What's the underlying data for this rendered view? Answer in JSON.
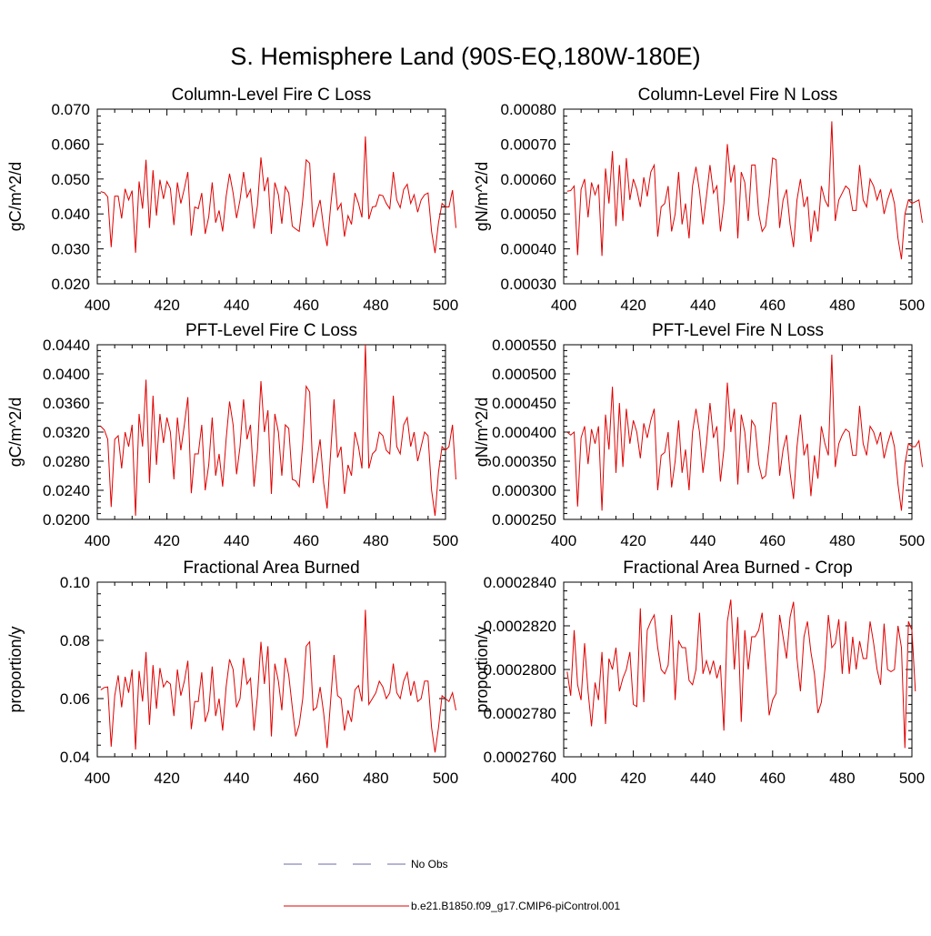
{
  "page_title": "S. Hemisphere Land (90S-EQ,180W-180E)",
  "legend": [
    {
      "label": "No Obs",
      "color": "#6a6aa8",
      "style": "dashed"
    },
    {
      "label": "b.e21.B1850.f09_g17.CMIP6-piControl.001",
      "color": "#e00000",
      "style": "solid"
    }
  ],
  "chart_data": [
    {
      "type": "line",
      "title": "Column-Level Fire C Loss",
      "xlabel": "",
      "ylabel": "gC/m^2/d",
      "xlim": [
        400,
        500
      ],
      "ylim": [
        0.02,
        0.07
      ],
      "xticks": [
        400,
        420,
        440,
        460,
        480,
        500
      ],
      "xtick_labels": [
        "400",
        "420",
        "440",
        "460",
        "480",
        "500"
      ],
      "yticks": [
        0.02,
        0.03,
        0.04,
        0.05,
        0.06,
        0.07
      ],
      "ytick_labels": [
        "0.020",
        "0.030",
        "0.040",
        "0.050",
        "0.060",
        "0.070"
      ],
      "series": [
        {
          "name": "b.e21.B1850.f09_g17.CMIP6-piControl.001",
          "color": "#e00000",
          "x_start": 401,
          "values": [
            0.0464,
            0.0461,
            0.0449,
            0.0305,
            0.0451,
            0.0451,
            0.0387,
            0.0472,
            0.044,
            0.0467,
            0.0289,
            0.0493,
            0.0415,
            0.0555,
            0.036,
            0.0525,
            0.0395,
            0.0498,
            0.0443,
            0.0493,
            0.0473,
            0.0368,
            0.049,
            0.043,
            0.0473,
            0.052,
            0.0338,
            0.042,
            0.0415,
            0.046,
            0.0343,
            0.0392,
            0.049,
            0.0375,
            0.041,
            0.035,
            0.045,
            0.0515,
            0.046,
            0.0388,
            0.044,
            0.052,
            0.0448,
            0.047,
            0.0358,
            0.0425,
            0.0562,
            0.0465,
            0.0505,
            0.0343,
            0.049,
            0.0455,
            0.0372,
            0.0478,
            0.046,
            0.0365,
            0.0357,
            0.035,
            0.044,
            0.0555,
            0.0545,
            0.0362,
            0.0405,
            0.044,
            0.036,
            0.0308,
            0.042,
            0.0518,
            0.0412,
            0.043,
            0.0335,
            0.0395,
            0.037,
            0.046,
            0.043,
            0.039,
            0.0622,
            0.0385,
            0.042,
            0.0422,
            0.0455,
            0.0452,
            0.043,
            0.0415,
            0.052,
            0.044,
            0.0418,
            0.047,
            0.0485,
            0.043,
            0.0455,
            0.0405,
            0.044,
            0.0455,
            0.046,
            0.035,
            0.0288,
            0.0375,
            0.043,
            0.042,
            0.042,
            0.0468,
            0.036
          ]
        }
      ]
    },
    {
      "type": "line",
      "title": "Column-Level Fire N Loss",
      "xlabel": "",
      "ylabel": "gN/m^2/d",
      "xlim": [
        400,
        500
      ],
      "ylim": [
        0.0003,
        0.0008
      ],
      "xticks": [
        400,
        420,
        440,
        460,
        480,
        500
      ],
      "xtick_labels": [
        "400",
        "420",
        "440",
        "460",
        "480",
        "500"
      ],
      "yticks": [
        0.0003,
        0.0004,
        0.0005,
        0.0006,
        0.0007,
        0.0008
      ],
      "ytick_labels": [
        "0.00030",
        "0.00040",
        "0.00050",
        "0.00060",
        "0.00070",
        "0.00080"
      ],
      "series": [
        {
          "name": "b.e21.B1850.f09_g17.CMIP6-piControl.001",
          "color": "#e00000",
          "x_start": 401,
          "values": [
            0.000565,
            0.000567,
            0.00058,
            0.000382,
            0.00057,
            0.0006,
            0.00049,
            0.00059,
            0.000555,
            0.000585,
            0.00038,
            0.00063,
            0.00053,
            0.00068,
            0.000465,
            0.00064,
            0.00048,
            0.00066,
            0.00054,
            0.0006,
            0.00057,
            0.00052,
            0.000605,
            0.00055,
            0.00062,
            0.00064,
            0.000435,
            0.00052,
            0.00053,
            0.00058,
            0.00045,
            0.0005,
            0.00062,
            0.00047,
            0.00053,
            0.00043,
            0.00058,
            0.000635,
            0.000565,
            0.00047,
            0.00055,
            0.00064,
            0.00056,
            0.00058,
            0.00045,
            0.00053,
            0.0007,
            0.00059,
            0.00064,
            0.00043,
            0.00062,
            0.00059,
            0.00048,
            0.00064,
            0.00064,
            0.0005,
            0.00045,
            0.000465,
            0.00055,
            0.00066,
            0.000655,
            0.00046,
            0.00054,
            0.00057,
            0.00047,
            0.000405,
            0.00054,
            0.0006,
            0.00052,
            0.00055,
            0.00042,
            0.00051,
            0.00045,
            0.00058,
            0.00054,
            0.00052,
            0.000765,
            0.00048,
            0.00054,
            0.00056,
            0.00058,
            0.00057,
            0.00051,
            0.00051,
            0.00064,
            0.00054,
            0.00052,
            0.0006,
            0.00058,
            0.00054,
            0.00057,
            0.0005,
            0.00054,
            0.00057,
            0.00053,
            0.00043,
            0.00037,
            0.0005,
            0.00054,
            0.00053,
            0.000535,
            0.00054,
            0.000475
          ]
        }
      ]
    },
    {
      "type": "line",
      "title": "PFT-Level Fire C Loss",
      "xlabel": "",
      "ylabel": "gC/m^2/d",
      "xlim": [
        400,
        500
      ],
      "ylim": [
        0.02,
        0.044
      ],
      "xticks": [
        400,
        420,
        440,
        460,
        480,
        500
      ],
      "xtick_labels": [
        "400",
        "420",
        "440",
        "460",
        "480",
        "500"
      ],
      "yticks": [
        0.02,
        0.024,
        0.028,
        0.032,
        0.036,
        0.04,
        0.044
      ],
      "ytick_labels": [
        "0.0200",
        "0.0240",
        "0.0280",
        "0.0320",
        "0.0360",
        "0.0400",
        "0.0440"
      ],
      "series": [
        {
          "name": "b.e21.B1850.f09_g17.CMIP6-piControl.001",
          "color": "#e00000",
          "x_start": 401,
          "values": [
            0.0328,
            0.0323,
            0.031,
            0.0217,
            0.031,
            0.0315,
            0.027,
            0.032,
            0.03,
            0.033,
            0.0205,
            0.0345,
            0.03,
            0.0392,
            0.025,
            0.037,
            0.0275,
            0.0345,
            0.0305,
            0.034,
            0.032,
            0.0255,
            0.034,
            0.0295,
            0.033,
            0.0368,
            0.0236,
            0.029,
            0.029,
            0.033,
            0.024,
            0.0275,
            0.034,
            0.026,
            0.029,
            0.0245,
            0.031,
            0.0362,
            0.033,
            0.0262,
            0.03,
            0.0365,
            0.031,
            0.033,
            0.0245,
            0.0295,
            0.039,
            0.032,
            0.035,
            0.0235,
            0.0345,
            0.032,
            0.026,
            0.033,
            0.0325,
            0.0255,
            0.0253,
            0.0245,
            0.0305,
            0.0383,
            0.0375,
            0.025,
            0.028,
            0.031,
            0.025,
            0.0215,
            0.029,
            0.0365,
            0.0285,
            0.03,
            0.0235,
            0.0275,
            0.026,
            0.032,
            0.03,
            0.027,
            0.044,
            0.027,
            0.029,
            0.0295,
            0.032,
            0.0315,
            0.0295,
            0.029,
            0.037,
            0.03,
            0.029,
            0.033,
            0.034,
            0.03,
            0.032,
            0.028,
            0.03,
            0.032,
            0.0315,
            0.024,
            0.0205,
            0.0265,
            0.03,
            0.0295,
            0.03,
            0.033,
            0.0255
          ]
        }
      ]
    },
    {
      "type": "line",
      "title": "PFT-Level Fire N Loss",
      "xlabel": "",
      "ylabel": "gN/m^2/d",
      "xlim": [
        400,
        500
      ],
      "ylim": [
        0.00025,
        0.00055
      ],
      "xticks": [
        400,
        420,
        440,
        460,
        480,
        500
      ],
      "xtick_labels": [
        "400",
        "420",
        "440",
        "460",
        "480",
        "500"
      ],
      "yticks": [
        0.00025,
        0.0003,
        0.00035,
        0.0004,
        0.00045,
        0.0005,
        0.00055
      ],
      "ytick_labels": [
        "0.000250",
        "0.000300",
        "0.000350",
        "0.000400",
        "0.000450",
        "0.000500",
        "0.000550"
      ],
      "series": [
        {
          "name": "b.e21.B1850.f09_g17.CMIP6-piControl.001",
          "color": "#e00000",
          "x_start": 401,
          "values": [
            0.0004,
            0.000395,
            0.0004,
            0.000272,
            0.00039,
            0.00041,
            0.000345,
            0.000405,
            0.00038,
            0.00041,
            0.000265,
            0.00043,
            0.00037,
            0.000478,
            0.00033,
            0.00045,
            0.00034,
            0.00044,
            0.00038,
            0.00042,
            0.0004,
            0.000355,
            0.000415,
            0.00039,
            0.00042,
            0.00044,
            0.0003,
            0.00036,
            0.000365,
            0.0004,
            0.000305,
            0.00035,
            0.00042,
            0.00033,
            0.00037,
            0.0003,
            0.0004,
            0.00044,
            0.0004,
            0.00033,
            0.00038,
            0.00045,
            0.00039,
            0.00041,
            0.000315,
            0.00037,
            0.000485,
            0.0004,
            0.00044,
            0.00031,
            0.00043,
            0.0004,
            0.00033,
            0.00042,
            0.00041,
            0.000345,
            0.00032,
            0.000325,
            0.00038,
            0.00045,
            0.00045,
            0.000325,
            0.00037,
            0.000395,
            0.00033,
            0.000285,
            0.000375,
            0.00043,
            0.00036,
            0.00038,
            0.00029,
            0.00036,
            0.00032,
            0.00041,
            0.00038,
            0.00036,
            0.000533,
            0.00034,
            0.00038,
            0.000395,
            0.000405,
            0.0004,
            0.00036,
            0.00036,
            0.000445,
            0.00038,
            0.00036,
            0.00041,
            0.0004,
            0.00038,
            0.0004,
            0.000355,
            0.00038,
            0.0004,
            0.000375,
            0.00031,
            0.000265,
            0.000345,
            0.00038,
            0.000375,
            0.000375,
            0.000385,
            0.00034
          ]
        }
      ]
    },
    {
      "type": "line",
      "title": "Fractional Area Burned",
      "xlabel": "",
      "ylabel": "proportion/y",
      "xlim": [
        400,
        500
      ],
      "ylim": [
        0.04,
        0.1
      ],
      "xticks": [
        400,
        420,
        440,
        460,
        480,
        500
      ],
      "xtick_labels": [
        "400",
        "420",
        "440",
        "460",
        "480",
        "500"
      ],
      "yticks": [
        0.04,
        0.06,
        0.08,
        0.1
      ],
      "ytick_labels": [
        "0.04",
        "0.06",
        "0.08",
        "0.10"
      ],
      "series": [
        {
          "name": "b.e21.B1850.f09_g17.CMIP6-piControl.001",
          "color": "#e00000",
          "x_start": 401,
          "values": [
            0.063,
            0.0638,
            0.064,
            0.0435,
            0.061,
            0.068,
            0.057,
            0.0675,
            0.062,
            0.07,
            0.0425,
            0.0695,
            0.059,
            0.076,
            0.051,
            0.0715,
            0.0565,
            0.0705,
            0.064,
            0.066,
            0.065,
            0.054,
            0.07,
            0.061,
            0.066,
            0.073,
            0.0495,
            0.059,
            0.059,
            0.069,
            0.052,
            0.056,
            0.071,
            0.054,
            0.06,
            0.049,
            0.064,
            0.0735,
            0.07,
            0.057,
            0.06,
            0.074,
            0.065,
            0.067,
            0.049,
            0.061,
            0.0795,
            0.065,
            0.078,
            0.047,
            0.072,
            0.066,
            0.056,
            0.074,
            0.068,
            0.057,
            0.047,
            0.051,
            0.06,
            0.078,
            0.0795,
            0.056,
            0.057,
            0.064,
            0.055,
            0.043,
            0.059,
            0.075,
            0.061,
            0.06,
            0.049,
            0.056,
            0.052,
            0.063,
            0.0645,
            0.059,
            0.0905,
            0.058,
            0.06,
            0.062,
            0.066,
            0.064,
            0.06,
            0.062,
            0.072,
            0.062,
            0.06,
            0.066,
            0.069,
            0.061,
            0.066,
            0.059,
            0.06,
            0.066,
            0.066,
            0.05,
            0.0415,
            0.05,
            0.061,
            0.06,
            0.059,
            0.062,
            0.056
          ]
        }
      ]
    },
    {
      "type": "line",
      "title": "Fractional Area Burned - Crop",
      "xlabel": "",
      "ylabel": "proportion/y",
      "xlim": [
        400,
        500
      ],
      "ylim": [
        0.000276,
        0.000284
      ],
      "xticks": [
        400,
        420,
        440,
        460,
        480,
        500
      ],
      "xtick_labels": [
        "400",
        "420",
        "440",
        "460",
        "480",
        "500"
      ],
      "yticks": [
        0.000276,
        0.000278,
        0.00028,
        0.000282,
        0.000284
      ],
      "ytick_labels": [
        "0.0002760",
        "0.0002780",
        "0.0002800",
        "0.0002820",
        "0.0002840"
      ],
      "series": [
        {
          "name": "b.e21.B1850.f09_g17.CMIP6-piControl.001",
          "color": "#e00000",
          "x_start": 401,
          "values": [
            0.0002799,
            0.0002788,
            0.0002818,
            0.0002793,
            0.0002786,
            0.0002812,
            0.000279,
            0.0002774,
            0.0002794,
            0.0002786,
            0.0002808,
            0.0002775,
            0.0002805,
            0.00028,
            0.000281,
            0.000279,
            0.0002796,
            0.00028,
            0.0002808,
            0.0002784,
            0.0002783,
            0.0002828,
            0.0002785,
            0.0002818,
            0.0002822,
            0.0002825,
            0.000281,
            0.00028,
            0.0002798,
            0.0002802,
            0.0002825,
            0.0002786,
            0.0002813,
            0.000281,
            0.000281,
            0.0002795,
            0.0002793,
            0.00028,
            0.0002826,
            0.0002798,
            0.0002804,
            0.0002798,
            0.0002804,
            0.0002796,
            0.0002802,
            0.0002772,
            0.0002822,
            0.0002832,
            0.00028,
            0.0002824,
            0.0002776,
            0.0002818,
            0.00028,
            0.0002815,
            0.0002815,
            0.0002818,
            0.0002826,
            0.0002803,
            0.0002779,
            0.0002786,
            0.0002789,
            0.0002825,
            0.0002815,
            0.0002805,
            0.0002824,
            0.0002831,
            0.0002805,
            0.000279,
            0.0002815,
            0.0002822,
            0.0002808,
            0.0002798,
            0.000278,
            0.0002785,
            0.00028,
            0.0002825,
            0.000281,
            0.0002812,
            0.0002823,
            0.0002798,
            0.0002822,
            0.0002798,
            0.0002815,
            0.00028,
            0.0002813,
            0.0002805,
            0.0002805,
            0.0002822,
            0.0002812,
            0.00028,
            0.0002793,
            0.0002821,
            0.00028,
            0.0002799,
            0.00028,
            0.000282,
            0.000281,
            0.0002764,
            0.0002822,
            0.0002818,
            0.000279
          ]
        }
      ]
    }
  ]
}
